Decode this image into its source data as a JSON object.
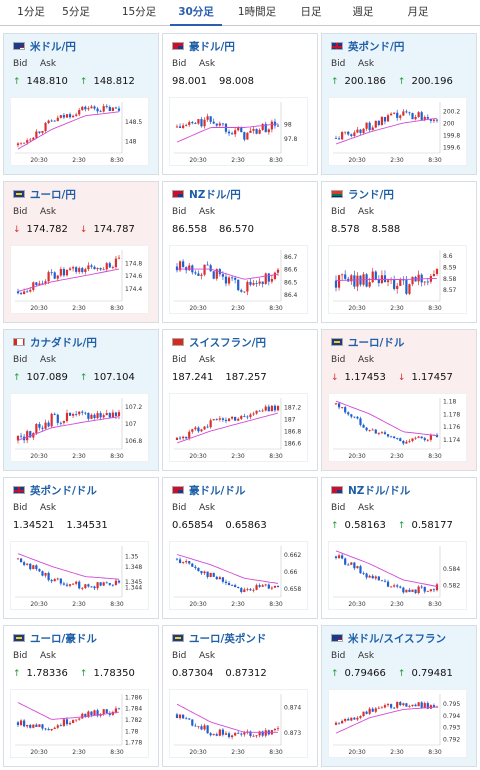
{
  "tabs": [
    "1分足",
    "5分足",
    "15分足",
    "30分足",
    "1時間足",
    "日足",
    "週足",
    "月足"
  ],
  "active_tab": "30分足",
  "x_ticks": [
    "20:30",
    "2:30",
    "8:30"
  ],
  "colors": {
    "up": "#d9302e",
    "down": "#1f5fd0",
    "ma": "#d24ad8",
    "arrow_up": "#1a9a3a",
    "arrow_down": "#d9302e",
    "title": "#1f5fa8"
  },
  "cards": [
    {
      "name": "米ドル/円",
      "flag": "us",
      "state": "up",
      "bid_label": "Bid",
      "ask_label": "Ask",
      "bid": "148.810",
      "ask": "148.812",
      "dir": "up",
      "chart_data": {
        "type": "candlestick",
        "x": [
          "20:30",
          "2:30",
          "8:30"
        ],
        "ylim": [
          147.7,
          149.0
        ],
        "yticks": [
          "148.5",
          "148"
        ],
        "trend": [
          147.9,
          148.5,
          148.85,
          148.8
        ],
        "ma": [
          147.8,
          148.3,
          148.65,
          148.75
        ],
        "noise": 0.12
      }
    },
    {
      "name": "豪ドル/円",
      "flag": "au",
      "state": "flat",
      "bid_label": "Bid",
      "ask_label": "Ask",
      "bid": "98.001",
      "ask": "98.008",
      "dir": "none",
      "chart_data": {
        "type": "candlestick",
        "x": [
          "20:30",
          "2:30",
          "8:30"
        ],
        "ylim": [
          97.6,
          98.3
        ],
        "yticks": [
          "98",
          "97.8"
        ],
        "trend": [
          97.95,
          98.05,
          97.85,
          98.0
        ],
        "ma": [
          97.75,
          97.95,
          97.95,
          98.0
        ],
        "noise": 0.09
      }
    },
    {
      "name": "英ポンド/円",
      "flag": "gb",
      "state": "up",
      "bid_label": "Bid",
      "ask_label": "Ask",
      "bid": "200.186",
      "ask": "200.196",
      "dir": "up",
      "chart_data": {
        "type": "candlestick",
        "x": [
          "20:30",
          "2:30",
          "8:30"
        ],
        "ylim": [
          199.5,
          200.35
        ],
        "yticks": [
          "200.2",
          "200",
          "199.8",
          "199.6"
        ],
        "trend": [
          199.75,
          199.95,
          200.15,
          200.1
        ],
        "ma": [
          199.65,
          199.85,
          200.0,
          200.08
        ],
        "noise": 0.1
      }
    },
    {
      "name": "ユーロ/円",
      "flag": "eu",
      "state": "down",
      "bid_label": "Bid",
      "ask_label": "Ask",
      "bid": "174.782",
      "ask": "174.787",
      "dir": "down",
      "chart_data": {
        "type": "candlestick",
        "x": [
          "20:30",
          "2:30",
          "8:30"
        ],
        "ylim": [
          174.2,
          175.0
        ],
        "yticks": [
          "174.8",
          "174.6",
          "174.4"
        ],
        "trend": [
          174.35,
          174.6,
          174.7,
          174.8
        ],
        "ma": [
          174.35,
          174.5,
          174.6,
          174.7
        ],
        "noise": 0.1
      }
    },
    {
      "name": "NZドル/円",
      "flag": "nz",
      "state": "flat",
      "bid_label": "Bid",
      "ask_label": "Ask",
      "bid": "86.558",
      "ask": "86.570",
      "dir": "none",
      "chart_data": {
        "type": "candlestick",
        "x": [
          "20:30",
          "2:30",
          "8:30"
        ],
        "ylim": [
          86.35,
          86.75
        ],
        "yticks": [
          "86.7",
          "86.6",
          "86.5",
          "86.4"
        ],
        "trend": [
          86.62,
          86.58,
          86.45,
          86.56
        ],
        "ma": [
          86.6,
          86.6,
          86.52,
          86.56
        ],
        "noise": 0.06
      }
    },
    {
      "name": "ランド/円",
      "flag": "za",
      "state": "flat",
      "bid_label": "Bid",
      "ask_label": "Ask",
      "bid": "8.578",
      "ask": "8.588",
      "dir": "none",
      "chart_data": {
        "type": "candlestick",
        "x": [
          "20:30",
          "2:30",
          "8:30"
        ],
        "ylim": [
          8.56,
          8.605
        ],
        "yticks": [
          "8.6",
          "8.59",
          "8.58",
          "8.57"
        ],
        "trend": [
          8.578,
          8.58,
          8.572,
          8.585
        ],
        "ma": [
          8.578,
          8.579,
          8.579,
          8.58
        ],
        "noise": 0.009
      }
    },
    {
      "name": "カナダドル/円",
      "flag": "ca",
      "state": "up",
      "bid_label": "Bid",
      "ask_label": "Ask",
      "bid": "107.089",
      "ask": "107.104",
      "dir": "up",
      "chart_data": {
        "type": "candlestick",
        "x": [
          "20:30",
          "2:30",
          "8:30"
        ],
        "ylim": [
          106.7,
          107.3
        ],
        "yticks": [
          "107.2",
          "107",
          "106.8"
        ],
        "trend": [
          106.8,
          107.05,
          107.1,
          107.12
        ],
        "ma": [
          106.8,
          106.95,
          107.02,
          107.08
        ],
        "noise": 0.08
      }
    },
    {
      "name": "スイスフラン/円",
      "flag": "ch",
      "state": "flat",
      "bid_label": "Bid",
      "ask_label": "Ask",
      "bid": "187.241",
      "ask": "187.257",
      "dir": "none",
      "chart_data": {
        "type": "candlestick",
        "x": [
          "20:30",
          "2:30",
          "8:30"
        ],
        "ylim": [
          186.5,
          187.35
        ],
        "yticks": [
          "187.2",
          "187",
          "186.8",
          "186.6"
        ],
        "trend": [
          186.65,
          186.95,
          187.05,
          187.22
        ],
        "ma": [
          186.6,
          186.8,
          186.95,
          187.1
        ],
        "noise": 0.08
      }
    },
    {
      "name": "ユーロ/ドル",
      "flag": "eu",
      "state": "down",
      "bid_label": "Bid",
      "ask_label": "Ask",
      "bid": "1.17453",
      "ask": "1.17457",
      "dir": "down",
      "chart_data": {
        "type": "candlestick",
        "x": [
          "20:30",
          "2:30",
          "8:30"
        ],
        "ylim": [
          1.1725,
          1.1805
        ],
        "yticks": [
          "1.18",
          "1.178",
          "1.176",
          "1.174"
        ],
        "trend": [
          1.1795,
          1.1755,
          1.1737,
          1.1745
        ],
        "ma": [
          1.18,
          1.178,
          1.1752,
          1.1746
        ],
        "noise": 0.0006
      }
    },
    {
      "name": "英ポンド/ドル",
      "flag": "gb",
      "state": "flat",
      "bid_label": "Bid",
      "ask_label": "Ask",
      "bid": "1.34521",
      "ask": "1.34531",
      "dir": "none",
      "chart_data": {
        "type": "candlestick",
        "x": [
          "20:30",
          "2:30",
          "8:30"
        ],
        "ylim": [
          1.342,
          1.352
        ],
        "yticks": [
          "1.35",
          "1.348",
          "1.345",
          "1.344"
        ],
        "trend": [
          1.3495,
          1.3455,
          1.344,
          1.3452
        ],
        "ma": [
          1.3505,
          1.348,
          1.346,
          1.3455
        ],
        "noise": 0.0008
      }
    },
    {
      "name": "豪ドル/ドル",
      "flag": "au",
      "state": "flat",
      "bid_label": "Bid",
      "ask_label": "Ask",
      "bid": "0.65854",
      "ask": "0.65863",
      "dir": "none",
      "chart_data": {
        "type": "candlestick",
        "x": [
          "20:30",
          "2:30",
          "8:30"
        ],
        "ylim": [
          0.657,
          0.663
        ],
        "yticks": [
          "0.662",
          "0.66",
          "0.658"
        ],
        "trend": [
          0.6615,
          0.6595,
          0.6578,
          0.6585
        ],
        "ma": [
          0.662,
          0.6608,
          0.6592,
          0.6586
        ],
        "noise": 0.0005
      }
    },
    {
      "name": "NZドル/ドル",
      "flag": "nz",
      "state": "flat",
      "bid_label": "Bid",
      "ask_label": "Ask",
      "bid": "0.58163",
      "ask": "0.58177",
      "dir": "up",
      "chart_data": {
        "type": "candlestick",
        "x": [
          "20:30",
          "2:30",
          "8:30"
        ],
        "ylim": [
          0.5805,
          0.5868
        ],
        "yticks": [
          "0.584",
          "0.582"
        ],
        "trend": [
          0.5855,
          0.583,
          0.5812,
          0.5817
        ],
        "ma": [
          0.5862,
          0.5846,
          0.5826,
          0.5818
        ],
        "noise": 0.0005
      }
    },
    {
      "name": "ユーロ/豪ドル",
      "flag": "eu",
      "state": "flat",
      "bid_label": "Bid",
      "ask_label": "Ask",
      "bid": "1.78336",
      "ask": "1.78350",
      "dir": "up",
      "chart_data": {
        "type": "candlestick",
        "x": [
          "20:30",
          "2:30",
          "8:30"
        ],
        "ylim": [
          1.7775,
          1.7865
        ],
        "yticks": [
          "1.786",
          "1.784",
          "1.782",
          "1.78",
          "1.778"
        ],
        "trend": [
          1.7815,
          1.7805,
          1.783,
          1.7835
        ],
        "ma": [
          1.785,
          1.782,
          1.7825,
          1.7833
        ],
        "noise": 0.0008
      }
    },
    {
      "name": "ユーロ/英ポンド",
      "flag": "eu",
      "state": "flat",
      "bid_label": "Bid",
      "ask_label": "Ask",
      "bid": "0.87304",
      "ask": "0.87312",
      "dir": "none",
      "chart_data": {
        "type": "candlestick",
        "x": [
          "20:30",
          "2:30",
          "8:30"
        ],
        "ylim": [
          0.8725,
          0.8745
        ],
        "yticks": [
          "0.874",
          "0.873"
        ],
        "trend": [
          0.8737,
          0.873,
          0.8729,
          0.8731
        ],
        "ma": [
          0.8741,
          0.8734,
          0.873,
          0.873
        ],
        "noise": 0.00018
      }
    },
    {
      "name": "米ドル/スイスフラン",
      "flag": "us",
      "state": "up",
      "bid_label": "Bid",
      "ask_label": "Ask",
      "bid": "0.79466",
      "ask": "0.79481",
      "dir": "up",
      "chart_data": {
        "type": "candlestick",
        "x": [
          "20:30",
          "2:30",
          "8:30"
        ],
        "ylim": [
          0.7915,
          0.7958
        ],
        "yticks": [
          "0.795",
          "0.794",
          "0.793",
          "0.792"
        ],
        "trend": [
          0.7932,
          0.7944,
          0.795,
          0.7947
        ],
        "ma": [
          0.7925,
          0.7938,
          0.7945,
          0.7947
        ],
        "noise": 0.0003
      }
    }
  ]
}
